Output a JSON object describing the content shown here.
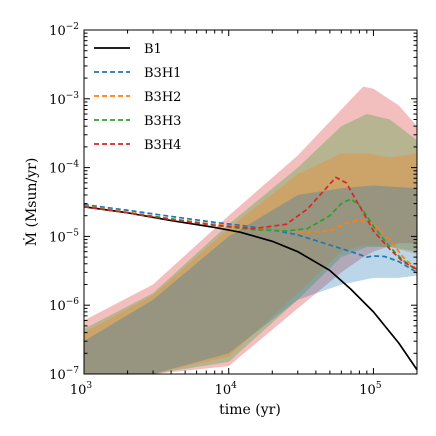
{
  "chart_data": {
    "type": "line",
    "title": "",
    "xlabel": "time (yr)",
    "ylabel": "Ṁ (Msun/yr)",
    "xscale": "log",
    "yscale": "log",
    "xlim": [
      1000,
      200000
    ],
    "ylim": [
      1e-07,
      0.01
    ],
    "x_ticks": [
      {
        "value": 1000,
        "mantissa": "10",
        "exponent": "3"
      },
      {
        "value": 10000,
        "mantissa": "10",
        "exponent": "4"
      },
      {
        "value": 100000,
        "mantissa": "10",
        "exponent": "5"
      }
    ],
    "y_ticks": [
      {
        "value": 1e-07,
        "mantissa": "10",
        "exponent": "−7"
      },
      {
        "value": 1e-06,
        "mantissa": "10",
        "exponent": "−6"
      },
      {
        "value": 1e-05,
        "mantissa": "10",
        "exponent": "−5"
      },
      {
        "value": 0.0001,
        "mantissa": "10",
        "exponent": "−4"
      },
      {
        "value": 0.001,
        "mantissa": "10",
        "exponent": "−3"
      },
      {
        "value": 0.01,
        "mantissa": "10",
        "exponent": "−2"
      }
    ],
    "grid": false,
    "legend_position": "top-left",
    "series": [
      {
        "name": "B1",
        "color": "#000000",
        "dash": "solid",
        "x": [
          1000,
          2000,
          4000,
          8000,
          12000,
          20000,
          30000,
          50000,
          70000,
          100000,
          150000,
          200000
        ],
        "y": [
          2.7e-05,
          2.2e-05,
          1.7e-05,
          1.35e-05,
          1.15e-05,
          8.5e-06,
          6e-06,
          3.2e-06,
          1.7e-06,
          8e-07,
          2.8e-07,
          1.15e-07
        ]
      },
      {
        "name": "B3H1",
        "color": "#1f77b4",
        "dash": "dashed",
        "x": [
          1000,
          2000,
          4000,
          8000,
          12000,
          20000,
          30000,
          50000,
          70000,
          90000,
          100000,
          120000,
          150000,
          200000
        ],
        "y": [
          2.9e-05,
          2.4e-05,
          1.95e-05,
          1.6e-05,
          1.45e-05,
          1.25e-05,
          1.05e-05,
          7.5e-06,
          6e-06,
          5e-06,
          5.2e-06,
          5.1e-06,
          4.3e-06,
          3e-06
        ]
      },
      {
        "name": "B3H2",
        "color": "#ff7f0e",
        "dash": "dashed",
        "x": [
          1000,
          2000,
          4000,
          8000,
          15000,
          25000,
          35000,
          50000,
          65000,
          80000,
          100000,
          130000,
          160000,
          200000
        ],
        "y": [
          2.8e-05,
          2.25e-05,
          1.8e-05,
          1.5e-05,
          1.3e-05,
          1.2e-05,
          1.15e-05,
          1.2e-05,
          1.55e-05,
          1.75e-05,
          1.5e-05,
          9e-06,
          5e-06,
          3.3e-06
        ]
      },
      {
        "name": "B3H3",
        "color": "#2ca02c",
        "dash": "dashed",
        "x": [
          1000,
          2000,
          4000,
          8000,
          15000,
          25000,
          35000,
          50000,
          60000,
          70000,
          80000,
          90000,
          100000,
          130000,
          160000,
          200000
        ],
        "y": [
          2.75e-05,
          2.2e-05,
          1.8e-05,
          1.45e-05,
          1.25e-05,
          1.2e-05,
          1.3e-05,
          2e-05,
          3e-05,
          3.5e-05,
          2.8e-05,
          2e-05,
          1.4e-05,
          7e-06,
          4.5e-06,
          3.2e-06
        ]
      },
      {
        "name": "B3H4",
        "color": "#d62728",
        "dash": "dashed",
        "x": [
          1000,
          2000,
          4000,
          8000,
          15000,
          25000,
          35000,
          45000,
          55000,
          65000,
          75000,
          90000,
          100000,
          130000,
          160000,
          200000
        ],
        "y": [
          2.7e-05,
          2.2e-05,
          1.75e-05,
          1.45e-05,
          1.3e-05,
          1.5e-05,
          2.5e-05,
          4.5e-05,
          7.2e-05,
          6e-05,
          3.5e-05,
          1.8e-05,
          1.2e-05,
          6.5e-06,
          4.3e-06,
          3.3e-06
        ]
      }
    ],
    "bands": [
      {
        "series": "B3H4",
        "color": "#d62728",
        "opacity": 0.3,
        "x": [
          1000,
          3000,
          10000,
          30000,
          60000,
          85000,
          100000,
          150000,
          200000
        ],
        "upper": [
          6e-07,
          2e-06,
          2e-05,
          0.00015,
          0.0007,
          0.0015,
          0.0014,
          0.0008,
          0.0004
        ],
        "lower": [
          1e-07,
          1e-07,
          1.3e-07,
          9e-07,
          3e-06,
          5e-06,
          6e-06,
          8e-06,
          8e-06
        ]
      },
      {
        "series": "B3H3",
        "color": "#2ca02c",
        "opacity": 0.3,
        "x": [
          1000,
          3000,
          10000,
          30000,
          60000,
          90000,
          130000,
          200000
        ],
        "upper": [
          4.5e-07,
          1.5e-06,
          1.5e-05,
          0.0001,
          0.0004,
          0.0006,
          0.0005,
          0.00025
        ],
        "lower": [
          1e-07,
          1e-07,
          1.5e-07,
          1.2e-06,
          5e-06,
          7e-06,
          7e-06,
          6e-06
        ]
      },
      {
        "series": "B3H2",
        "color": "#ff7f0e",
        "opacity": 0.3,
        "x": [
          1000,
          3000,
          10000,
          30000,
          60000,
          90000,
          130000,
          200000
        ],
        "upper": [
          4e-07,
          1.4e-06,
          1.3e-05,
          8e-05,
          0.00016,
          0.00016,
          0.00014,
          0.00016
        ],
        "lower": [
          1e-07,
          1e-07,
          1.8e-07,
          1.5e-06,
          6e-06,
          7.5e-06,
          7e-06,
          5.5e-06
        ]
      },
      {
        "series": "B3H1",
        "color": "#1f77b4",
        "opacity": 0.3,
        "x": [
          1000,
          3000,
          10000,
          30000,
          60000,
          100000,
          150000,
          200000
        ],
        "upper": [
          3e-07,
          1.2e-06,
          1e-05,
          4e-05,
          5e-05,
          5.5e-05,
          5.2e-05,
          5e-05
        ],
        "lower": [
          1e-07,
          1e-07,
          2e-07,
          1.2e-06,
          2e-06,
          2.5e-06,
          2.5e-06,
          2.7e-06
        ]
      }
    ]
  }
}
